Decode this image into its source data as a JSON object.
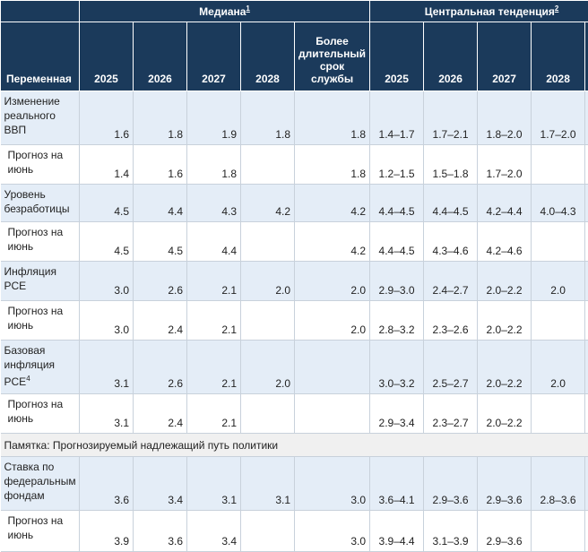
{
  "header": {
    "median_label": "Медиана",
    "median_note": "1",
    "central_label": "Центральная тенденция",
    "central_note": "2",
    "variable_label": "Переменная",
    "years": [
      "2025",
      "2026",
      "2027",
      "2028"
    ],
    "longer_run_label": "Более длительный срок службы",
    "central_years": [
      "2025",
      "2026",
      "2027",
      "2028"
    ]
  },
  "rows": [
    {
      "label": "Изменение реального ВВП",
      "note": "",
      "type": "main",
      "median": [
        "1.6",
        "1.8",
        "1.9",
        "1.8",
        "1.8"
      ],
      "central": [
        "1.4–1.7",
        "1.7–2.1",
        "1.8–2.0",
        "1.7–2.0"
      ]
    },
    {
      "label": "Прогноз на июнь",
      "note": "",
      "type": "sub",
      "median": [
        "1.4",
        "1.6",
        "1.8",
        "",
        "1.8"
      ],
      "central": [
        "1.2–1.5",
        "1.5–1.8",
        "1.7–2.0",
        ""
      ]
    },
    {
      "label": "Уровень безработицы",
      "note": "",
      "type": "main",
      "median": [
        "4.5",
        "4.4",
        "4.3",
        "4.2",
        "4.2"
      ],
      "central": [
        "4.4–4.5",
        "4.4–4.5",
        "4.2–4.4",
        "4.0–4.3"
      ]
    },
    {
      "label": "Прогноз на июнь",
      "note": "",
      "type": "sub",
      "median": [
        "4.5",
        "4.5",
        "4.4",
        "",
        "4.2"
      ],
      "central": [
        "4.4–4.5",
        "4.3–4.6",
        "4.2–4.6",
        ""
      ]
    },
    {
      "label": "Инфляция PCE",
      "note": "",
      "type": "main",
      "median": [
        "3.0",
        "2.6",
        "2.1",
        "2.0",
        "2.0"
      ],
      "central": [
        "2.9–3.0",
        "2.4–2.7",
        "2.0–2.2",
        "2.0"
      ]
    },
    {
      "label": "Прогноз на июнь",
      "note": "",
      "type": "sub",
      "median": [
        "3.0",
        "2.4",
        "2.1",
        "",
        "2.0"
      ],
      "central": [
        "2.8–3.2",
        "2.3–2.6",
        "2.0–2.2",
        ""
      ]
    },
    {
      "label": "Базовая инфляция PCE",
      "note": "4",
      "type": "main",
      "median": [
        "3.1",
        "2.6",
        "2.1",
        "2.0",
        ""
      ],
      "central": [
        "3.0–3.2",
        "2.5–2.7",
        "2.0–2.2",
        "2.0"
      ]
    },
    {
      "label": "Прогноз на июнь",
      "note": "",
      "type": "sub",
      "median": [
        "3.1",
        "2.4",
        "2.1",
        "",
        ""
      ],
      "central": [
        "2.9–3.4",
        "2.3–2.7",
        "2.0–2.2",
        ""
      ]
    }
  ],
  "memo": "Памятка: Прогнозируемый надлежащий путь политики",
  "rows2": [
    {
      "label": "Ставка по федеральным фондам",
      "note": "",
      "type": "main",
      "median": [
        "3.6",
        "3.4",
        "3.1",
        "3.1",
        "3.0"
      ],
      "central": [
        "3.6–4.1",
        "2.9–3.6",
        "2.9–3.6",
        "2.8–3.6"
      ]
    },
    {
      "label": "Прогноз на июнь",
      "note": "",
      "type": "sub",
      "median": [
        "3.9",
        "3.6",
        "3.4",
        "",
        "3.0"
      ],
      "central": [
        "3.9–4.4",
        "3.1–3.9",
        "2.9–3.6",
        ""
      ]
    }
  ]
}
